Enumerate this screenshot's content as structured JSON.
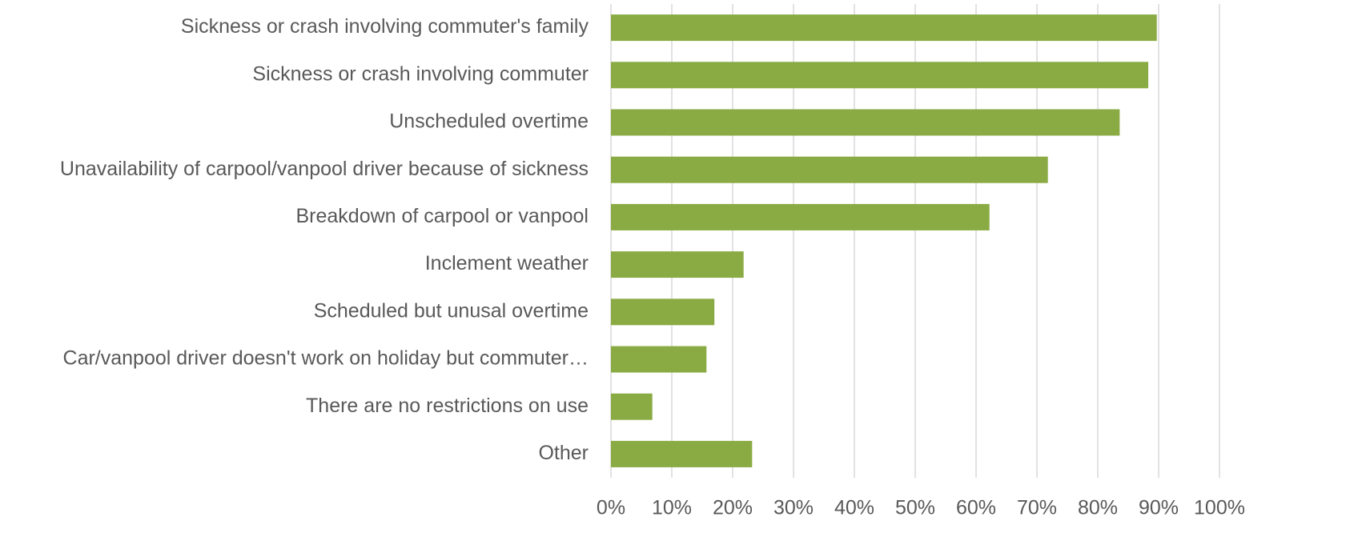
{
  "chart_data": {
    "type": "barh",
    "categories": [
      "Sickness or crash involving commuter's family",
      "Sickness or crash involving commuter",
      "Unscheduled overtime",
      "Unavailability of carpool/vanpool driver because of sickness",
      "Breakdown of carpool or vanpool",
      "Inclement weather",
      "Scheduled but unusal overtime",
      "Car/vanpool driver doesn't work on holiday but commuter…",
      "There are no restrictions on use",
      "Other"
    ],
    "values": [
      89.7,
      88.3,
      83.6,
      71.8,
      62.2,
      21.8,
      17.0,
      15.7,
      6.8,
      23.2
    ],
    "color": "#8aab44",
    "xlim": [
      0,
      100
    ],
    "xticks": [
      {
        "value": 0,
        "label": "0%"
      },
      {
        "value": 10,
        "label": "10%"
      },
      {
        "value": 20,
        "label": "20%"
      },
      {
        "value": 30,
        "label": "30%"
      },
      {
        "value": 40,
        "label": "40%"
      },
      {
        "value": 50,
        "label": "50%"
      },
      {
        "value": 60,
        "label": "60%"
      },
      {
        "value": 70,
        "label": "70%"
      },
      {
        "value": 80,
        "label": "80%"
      },
      {
        "value": 90,
        "label": "90%"
      },
      {
        "value": 100,
        "label": "100%"
      }
    ],
    "grid": true
  }
}
